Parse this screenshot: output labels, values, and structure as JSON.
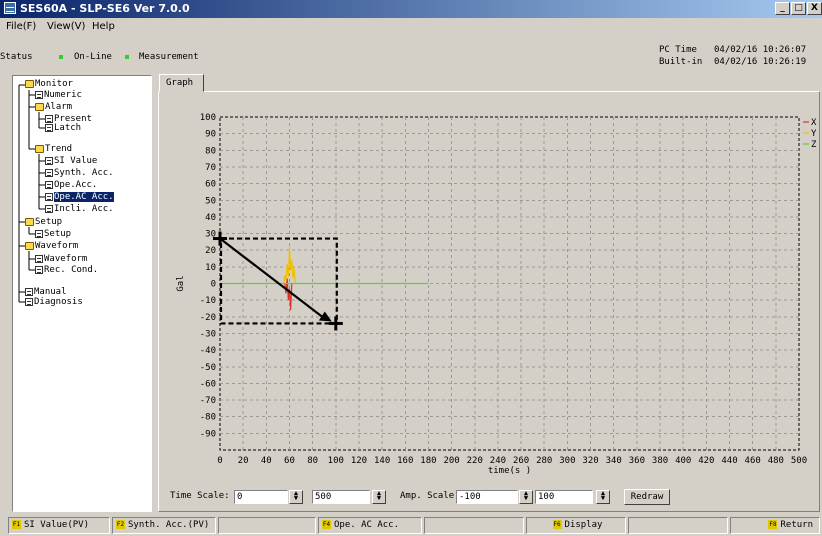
{
  "window": {
    "title": "SES60A - SLP-SE6 Ver 7.0.0",
    "buttons": [
      "_",
      "□",
      "X"
    ]
  },
  "menu": [
    "File(F)",
    "View(V)",
    "Help"
  ],
  "status": {
    "label": "Status",
    "online": "On-Line",
    "mode": "Measurement"
  },
  "clock": {
    "pc_label": "PC Time",
    "pc_value": "04/02/16 10:26:07",
    "builtin_label": "Built-in",
    "builtin_value": "04/02/16 10:26:19"
  },
  "tree": [
    {
      "label": "Monitor",
      "icon": "folder-open-icon"
    },
    {
      "label": "Numeric",
      "icon": "document-icon"
    },
    {
      "label": "Alarm",
      "icon": "folder-open-icon"
    },
    {
      "label": "Present",
      "icon": "document-icon"
    },
    {
      "label": "Latch",
      "icon": "document-icon"
    },
    {
      "label": "Trend",
      "icon": "folder-open-icon"
    },
    {
      "label": "SI Value",
      "icon": "document-icon"
    },
    {
      "label": "Synth. Acc.",
      "icon": "document-icon"
    },
    {
      "label": "Ope.Acc.",
      "icon": "document-icon"
    },
    {
      "label": "Ope.AC Acc.",
      "icon": "document-icon"
    },
    {
      "label": "Incli. Acc.",
      "icon": "document-icon"
    },
    {
      "label": "Setup",
      "icon": "folder-open-icon"
    },
    {
      "label": "Setup",
      "icon": "document-icon"
    },
    {
      "label": "Waveform",
      "icon": "folder-open-icon"
    },
    {
      "label": "Waveform",
      "icon": "document-icon"
    },
    {
      "label": "Rec. Cond.",
      "icon": "document-icon"
    },
    {
      "label": "Manual",
      "icon": "document-icon"
    },
    {
      "label": "Diagnosis",
      "icon": "document-icon"
    }
  ],
  "tab": "Graph",
  "chart_data": {
    "type": "line",
    "xlabel": "time(s )",
    "ylabel": "Gal",
    "xlim": [
      0,
      500
    ],
    "ylim": [
      -100,
      100
    ],
    "x_ticks": [
      0,
      20,
      40,
      60,
      80,
      100,
      120,
      140,
      160,
      180,
      200,
      220,
      240,
      260,
      280,
      300,
      320,
      340,
      360,
      380,
      400,
      420,
      440,
      460,
      480,
      500
    ],
    "y_ticks": [
      100,
      90,
      80,
      70,
      60,
      50,
      40,
      30,
      20,
      10,
      0,
      -10,
      -20,
      -30,
      -40,
      -50,
      -60,
      -70,
      -80,
      -90
    ],
    "legend_position": "right",
    "series": [
      {
        "name": "X",
        "color": "#e03020",
        "x": [
          56,
          57,
          58,
          59,
          60,
          61,
          62
        ],
        "y": [
          0,
          -6,
          3,
          -10,
          -3,
          -16,
          0
        ]
      },
      {
        "name": "Y",
        "color": "#f0c000",
        "x": [
          55,
          56,
          57,
          58,
          59,
          60,
          61,
          62,
          63,
          64,
          65,
          66
        ],
        "y": [
          0,
          5,
          2,
          12,
          4,
          22,
          8,
          14,
          3,
          9,
          1,
          0
        ]
      },
      {
        "name": "Z",
        "color": "#66cc33",
        "x": [
          0,
          180
        ],
        "y": [
          0,
          0
        ]
      }
    ],
    "grid": true
  },
  "controls": {
    "time_scale_label": "Time Scale:",
    "time_from": "0",
    "time_to": "500",
    "amp_scale_label": "Amp. Scale:",
    "amp_from": "-100",
    "amp_to": "100",
    "redraw": "Redraw"
  },
  "fkeys": [
    {
      "key": "F1",
      "label": "SI Value(PV)"
    },
    {
      "key": "F2",
      "label": "Synth. Acc.(PV)"
    },
    {
      "key": "F4",
      "label": "Ope. AC Acc."
    },
    {
      "key": "F6",
      "label": "Display"
    },
    {
      "key": "F8",
      "label": "Return"
    }
  ],
  "accent": "#0a246a"
}
